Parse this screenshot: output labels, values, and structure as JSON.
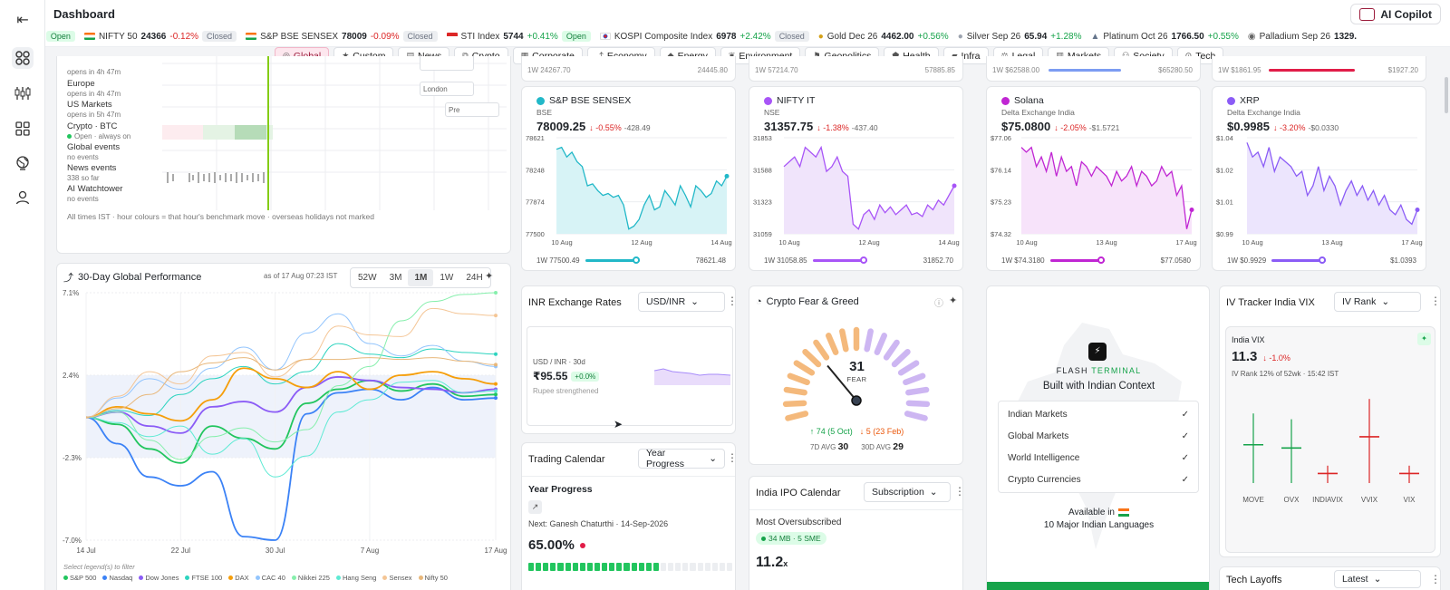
{
  "header": {
    "title": "Dashboard",
    "copilot_label": "AI Copilot"
  },
  "sidebar": {
    "items": [
      "collapse-icon",
      "grid-icon",
      "candles-icon",
      "apps-icon",
      "globe-icon",
      "user-icon"
    ]
  },
  "ticker": [
    {
      "name": "",
      "change": "%",
      "status": "Open"
    },
    {
      "name": "NIFTY 50",
      "price": "24366",
      "change": "-0.12%",
      "status": "Closed"
    },
    {
      "name": "S&P BSE SENSEX",
      "price": "78009",
      "change": "-0.09%",
      "status": "Closed"
    },
    {
      "name": "STI Index",
      "price": "5744",
      "change": "+0.41%",
      "status": "Open"
    },
    {
      "name": "KOSPI Composite Index",
      "price": "6978",
      "change": "+2.42%",
      "status": "Closed"
    },
    {
      "name": "Gold Dec 26",
      "price": "4462.00",
      "change": "+0.56%"
    },
    {
      "name": "Silver Sep 26",
      "price": "65.94",
      "change": "+1.28%"
    },
    {
      "name": "Platinum Oct 26",
      "price": "1766.50",
      "change": "+0.55%"
    },
    {
      "name": "Palladium Sep 26",
      "price": "1329."
    }
  ],
  "categories": [
    "Global",
    "Custom",
    "News",
    "Crypto",
    "Corporate",
    "Economy",
    "Energy",
    "Environment",
    "Geopolitics",
    "Health",
    "Infra",
    "Legal",
    "Markets",
    "Society",
    "Tech"
  ],
  "top_strip": {
    "left1": "1W 24267.70",
    "right1": "24445.80",
    "left2": "1W 57214.70",
    "right2": "57885.85",
    "left3": "1W $62588.00",
    "right3": "$65280.50",
    "left4": "1W $1861.95",
    "right4": "$1927.20"
  },
  "market_hours": {
    "rows": [
      {
        "label": "",
        "sub": "opens in 4h 47m"
      },
      {
        "label": "Europe",
        "sub": "opens in 4h 47m"
      },
      {
        "label": "US Markets",
        "sub": "opens in 5h 47m"
      },
      {
        "label": "Crypto · BTC",
        "sub": "Open · always on"
      },
      {
        "label": "Global events",
        "sub": "no events"
      },
      {
        "label": "News events",
        "sub": "338 so far"
      },
      {
        "label": "AI Watchtower",
        "sub": "no events"
      }
    ],
    "tags": [
      "London",
      "Pre"
    ],
    "footnote": "All times IST · hour colours = that hour's benchmark move · overseas holidays not marked"
  },
  "cards": [
    {
      "title": "S&P BSE SENSEX",
      "exchange": "BSE",
      "price": "78009.25",
      "chg": "↓ -0.55%",
      "chg_abs": "-428.49",
      "yticks": [
        "78621",
        "78248",
        "77874",
        "77500"
      ],
      "xticks": [
        "10 Aug",
        "12 Aug",
        "14 Aug"
      ],
      "low": "1W 77500.49",
      "high": "78621.48",
      "color": "#22b8c8",
      "fill": "#d7f3f6"
    },
    {
      "title": "NIFTY IT",
      "exchange": "NSE",
      "price": "31357.75",
      "chg": "↓ -1.38%",
      "chg_abs": "-437.40",
      "yticks": [
        "31853",
        "31588",
        "31323",
        "31059"
      ],
      "xticks": [
        "10 Aug",
        "12 Aug",
        "14 Aug"
      ],
      "low": "1W 31058.85",
      "high": "31852.70",
      "color": "#a855f7",
      "fill": "#f0e4fb"
    },
    {
      "title": "Solana",
      "exchange": "Delta Exchange India",
      "price": "$75.0800",
      "chg": "↓ -2.05%",
      "chg_abs": "-$1.5721",
      "yticks": [
        "$77.06",
        "$76.14",
        "$75.23",
        "$74.32"
      ],
      "xticks": [
        "10 Aug",
        "13 Aug",
        "17 Aug"
      ],
      "low": "1W $74.3180",
      "high": "$77.0580",
      "color": "#c026d3",
      "fill": "#f7e3fa"
    },
    {
      "title": "XRP",
      "exchange": "Delta Exchange India",
      "price": "$0.9985",
      "chg": "↓ -3.20%",
      "chg_abs": "-$0.0330",
      "yticks": [
        "$1.04",
        "$1.02",
        "$1.01",
        "$0.99"
      ],
      "xticks": [
        "10 Aug",
        "13 Aug",
        "17 Aug"
      ],
      "low": "1W $0.9929",
      "high": "$1.0393",
      "color": "#8b5cf6",
      "fill": "#ece5fd"
    }
  ],
  "perf": {
    "title": "30-Day Global Performance",
    "asof": "as of 17 Aug  07:23 IST",
    "timeframes": [
      "52W",
      "3M",
      "1M",
      "1W",
      "24H"
    ],
    "active_tf": "1M",
    "yticks": [
      "7.1%",
      "2.4%",
      "-2.3%",
      "-7.0%"
    ],
    "xticks": [
      "14 Jul",
      "22 Jul",
      "30 Jul",
      "7 Aug",
      "17 Aug"
    ],
    "hint": "Select legend(s) to filter",
    "legend": [
      "S&P 500",
      "Nasdaq",
      "Dow Jones",
      "FTSE 100",
      "DAX",
      "CAC 40",
      "Nikkei 225",
      "Hang Seng",
      "Sensex",
      "Nifty 50"
    ]
  },
  "chart_data": {
    "type": "line",
    "title": "30-Day Global Performance",
    "x": [
      "14 Jul",
      "17 Jul",
      "20 Jul",
      "22 Jul",
      "25 Jul",
      "28 Jul",
      "30 Jul",
      "2 Aug",
      "5 Aug",
      "7 Aug",
      "10 Aug",
      "13 Aug",
      "15 Aug",
      "17 Aug"
    ],
    "ylim": [
      -7.0,
      7.1
    ],
    "series": [
      {
        "name": "S&P 500",
        "values": [
          0,
          -0.4,
          -1.8,
          -2.6,
          -0.5,
          -1.2,
          -1.8,
          0.8,
          1.6,
          2.1,
          1.5,
          1.9,
          1.2,
          1.3
        ]
      },
      {
        "name": "Nasdaq",
        "values": [
          0,
          -1.5,
          -3.4,
          -3.9,
          -3.1,
          -6.8,
          -7.0,
          0.2,
          1.4,
          1.6,
          1.0,
          1.7,
          1.0,
          1.1
        ]
      },
      {
        "name": "Dow Jones",
        "values": [
          0,
          0.3,
          -0.5,
          -0.9,
          0.6,
          0.9,
          0.3,
          1.7,
          2.3,
          2.1,
          1.7,
          1.6,
          1.4,
          1.6
        ]
      },
      {
        "name": "FTSE 100",
        "values": [
          0,
          0.4,
          0.1,
          1.3,
          2.2,
          2.9,
          1.9,
          2.6,
          4.2,
          3.6,
          3.4,
          3.9,
          3.7,
          3.6
        ]
      },
      {
        "name": "DAX",
        "values": [
          0,
          0.6,
          0.2,
          -0.2,
          1.0,
          2.8,
          2.2,
          1.7,
          2.6,
          1.6,
          2.4,
          2.6,
          2.2,
          1.9
        ]
      },
      {
        "name": "CAC 40",
        "values": [
          0,
          1.1,
          2.2,
          1.6,
          2.8,
          4.0,
          2.7,
          4.8,
          5.9,
          4.2,
          3.5,
          4.1,
          3.2,
          2.9
        ]
      },
      {
        "name": "Nikkei 225",
        "values": [
          0,
          0.3,
          -1.3,
          -2.4,
          -1.1,
          -0.6,
          -1.4,
          -0.7,
          1.8,
          2.9,
          5.5,
          6.6,
          7.0,
          7.1
        ]
      },
      {
        "name": "Hang Seng",
        "values": [
          0,
          -0.3,
          -1.1,
          -0.5,
          -2.1,
          -1.2,
          -3.4,
          -2.2,
          0.3,
          1.0,
          2.0,
          2.1,
          1.4,
          1.5
        ]
      },
      {
        "name": "Sensex",
        "values": [
          0,
          1.2,
          2.6,
          1.9,
          3.5,
          3.7,
          2.3,
          3.3,
          5.2,
          4.7,
          4.6,
          6.2,
          5.9,
          5.8
        ]
      },
      {
        "name": "Nifty 50",
        "values": [
          0,
          0.5,
          1.3,
          2.6,
          3.1,
          3.4,
          2.7,
          3.3,
          3.3,
          3.4,
          3.3,
          3.4,
          3.2,
          3.0
        ]
      }
    ]
  },
  "fx": {
    "title": "INR Exchange Rates",
    "pair": "USD/INR",
    "sub": "USD / INR · 30d",
    "value": "₹95.55",
    "chg": "+0.0%",
    "note": "Rupee strengthened"
  },
  "calendar": {
    "title": "Trading Calendar",
    "select": "Year Progress",
    "heading": "Year Progress",
    "next": "Next: Ganesh Chaturthi · 14-Sep-2026",
    "pct": "65.00%",
    "progress": 0.65
  },
  "fear_greed": {
    "title": "Crypto Fear & Greed",
    "value": "31",
    "label": "FEAR",
    "high": "↑ 74 (5 Oct)",
    "low": "↓ 5 (23 Feb)",
    "avg7_label": "7D AVG",
    "avg7": "30",
    "avg30_label": "30D AVG",
    "avg30": "29",
    "gauge": 0.31
  },
  "ipo": {
    "title": "India IPO Calendar",
    "select": "Subscription",
    "heading": "Most Oversubscribed",
    "badge": "34 MB · 5 SME",
    "value": "11.2",
    "unit": "x"
  },
  "flash": {
    "brand_a": "FLASH",
    "brand_b": "TERMINAL",
    "tagline": "Built with Indian Context",
    "items": [
      "Indian Markets",
      "Global Markets",
      "World Intelligence",
      "Crypto Currencies"
    ],
    "avail": "Available in",
    "langs": "10 Major Indian Languages"
  },
  "iv": {
    "title": "IV Tracker India VIX",
    "select": "IV Rank",
    "name": "India VIX",
    "value": "11.3",
    "chg": "↓ -1.0%",
    "rank": "IV Rank 12% of 52wk · 15:42 IST",
    "candles": [
      {
        "label": "MOVE",
        "rank": 0.48,
        "color": "#16a34a"
      },
      {
        "label": "OVX",
        "rank": 0.44,
        "color": "#16a34a"
      },
      {
        "label": "INDIAVIX",
        "rank": 0.12,
        "color": "#dc2626"
      },
      {
        "label": "VVIX",
        "rank": 0.58,
        "color": "#dc2626"
      },
      {
        "label": "VIX",
        "rank": 0.12,
        "color": "#dc2626"
      }
    ]
  },
  "layoffs": {
    "title": "Tech Layoffs",
    "select": "Latest"
  }
}
